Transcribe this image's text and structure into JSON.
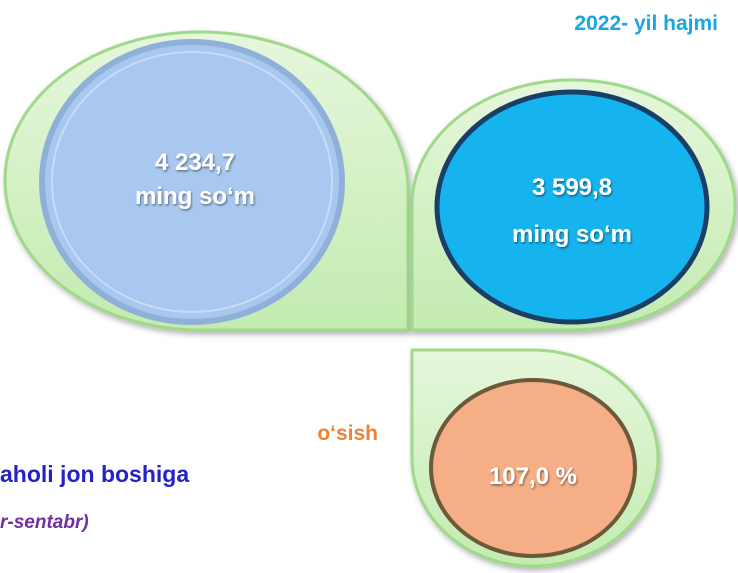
{
  "header": {
    "title": "2022- yil hajmi"
  },
  "left_value": {
    "lines": [
      "4 234,7",
      "ming so‘m"
    ]
  },
  "right_value": {
    "lines": [
      "3 599,8",
      "ming so‘m"
    ]
  },
  "growth": {
    "label": "o‘sish",
    "value": "107,0 %"
  },
  "caption": {
    "title": "aholi jon boshiga",
    "period": "r-sentabr)"
  }
}
